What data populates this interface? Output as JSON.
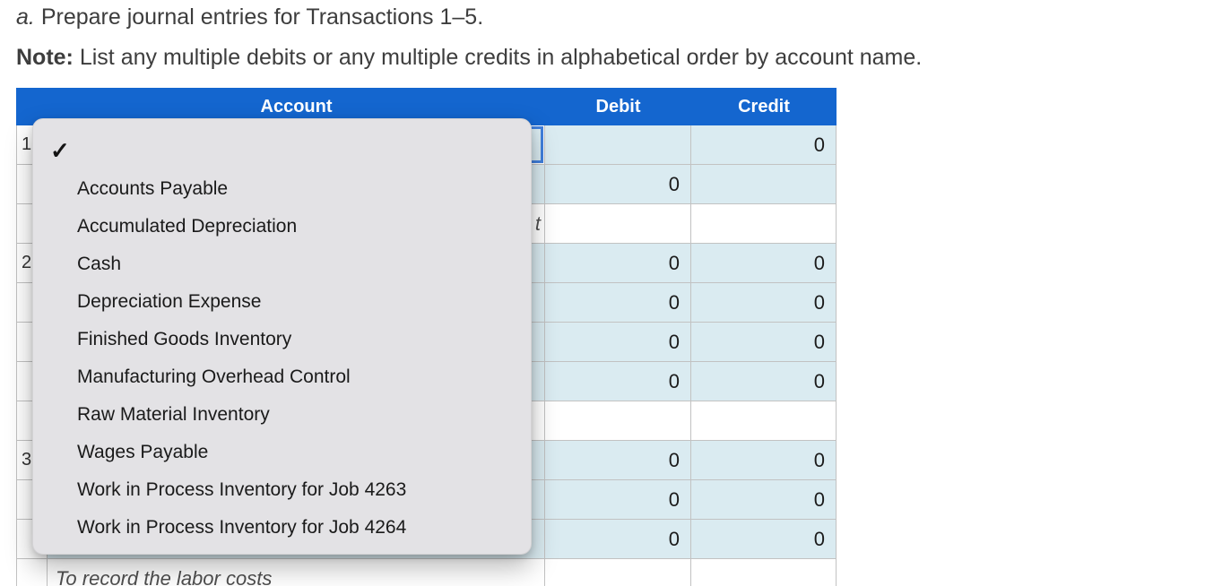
{
  "instructions": {
    "line1_prefix": "a.",
    "line1_text": "Prepare journal entries for Transactions 1–5.",
    "line2_prefix": "Note:",
    "line2_text": "List any multiple debits or any multiple credits in alphabetical order by account name."
  },
  "table": {
    "headers": {
      "account": "Account",
      "debit": "Debit",
      "credit": "Credit"
    },
    "rows": [
      {
        "num": "1",
        "type": "entry",
        "focused": true,
        "debit": "",
        "credit": "0"
      },
      {
        "num": "",
        "type": "entry",
        "focused": false,
        "debit": "0",
        "credit": ""
      },
      {
        "num": "",
        "type": "desc",
        "fragment": "t"
      },
      {
        "num": "2",
        "type": "entry",
        "focused": false,
        "debit": "0",
        "credit": "0"
      },
      {
        "num": "",
        "type": "entry",
        "focused": false,
        "debit": "0",
        "credit": "0"
      },
      {
        "num": "",
        "type": "entry",
        "focused": false,
        "debit": "0",
        "credit": "0"
      },
      {
        "num": "",
        "type": "entry",
        "focused": false,
        "debit": "0",
        "credit": "0"
      },
      {
        "num": "",
        "type": "desc"
      },
      {
        "num": "3",
        "type": "entry",
        "focused": false,
        "debit": "0",
        "credit": "0"
      },
      {
        "num": "",
        "type": "entry",
        "focused": false,
        "debit": "0",
        "credit": "0"
      },
      {
        "num": "",
        "type": "entry",
        "focused": false,
        "debit": "0",
        "credit": "0"
      },
      {
        "num": "",
        "type": "desc",
        "text": "To record the labor costs"
      }
    ]
  },
  "dropdown": {
    "checkmark": "✓",
    "items": [
      "Accounts Payable",
      "Accumulated Depreciation",
      "Cash",
      "Depreciation Expense",
      "Finished Goods Inventory",
      "Manufacturing Overhead Control",
      "Raw Material Inventory",
      "Wages Payable",
      "Work in Process Inventory for Job 4263",
      "Work in Process Inventory for Job 4264"
    ]
  },
  "colors": {
    "header_blue": "#1466cf",
    "cell_blue": "#daebf1",
    "focus_blue": "#4180dd",
    "dropdown_bg": "#e3e2e5",
    "gridline": "#c2c2c2"
  }
}
